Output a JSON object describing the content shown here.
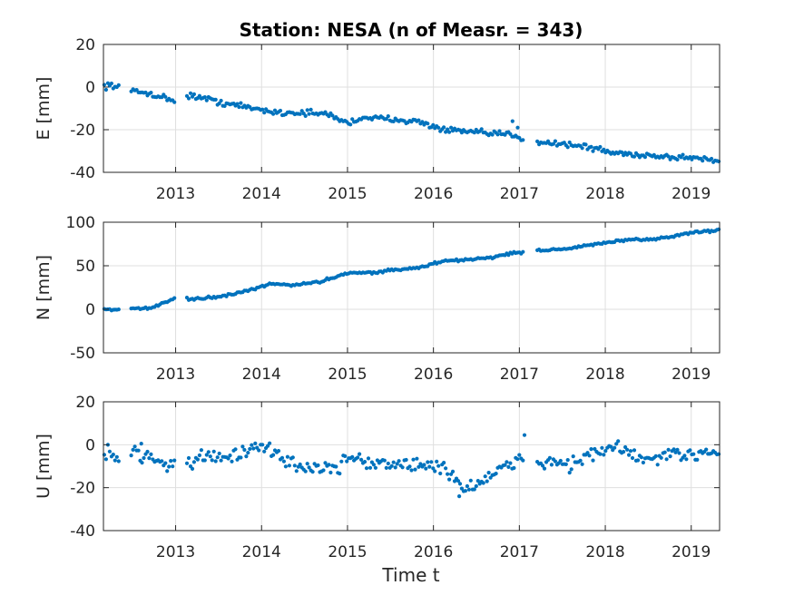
{
  "title": "Station: NESA (n of Measr. = 343)",
  "xlabel": "Time t",
  "colors": {
    "marker": "#0072BD",
    "grid": "#dfdfdf",
    "axis": "#262626"
  },
  "chart_data": [
    {
      "type": "scatter",
      "id": "E",
      "ylabel": "E [mm]",
      "xlim": [
        2012.16,
        2019.33
      ],
      "ylim": [
        -40,
        20
      ],
      "xticks": [
        2013,
        2014,
        2015,
        2016,
        2017,
        2018,
        2019
      ],
      "yticks": [
        20,
        0,
        -20,
        -40
      ],
      "grid": true,
      "profile": [
        [
          2012.16,
          0.5
        ],
        [
          2012.25,
          1
        ],
        [
          2012.5,
          -2
        ],
        [
          2012.7,
          -3
        ],
        [
          2012.95,
          -6
        ],
        [
          2013.2,
          -4
        ],
        [
          2013.5,
          -7
        ],
        [
          2013.9,
          -10
        ],
        [
          2014.2,
          -12
        ],
        [
          2014.5,
          -12
        ],
        [
          2014.8,
          -13
        ],
        [
          2015.0,
          -17
        ],
        [
          2015.2,
          -14
        ],
        [
          2015.4,
          -15
        ],
        [
          2015.6,
          -15
        ],
        [
          2015.9,
          -17
        ],
        [
          2016.1,
          -20
        ],
        [
          2016.4,
          -21
        ],
        [
          2016.7,
          -22
        ],
        [
          2016.9,
          -22
        ],
        [
          2017.1,
          -25
        ],
        [
          2017.3,
          -26
        ],
        [
          2017.6,
          -27
        ],
        [
          2017.9,
          -29
        ],
        [
          2018.1,
          -31
        ],
        [
          2018.5,
          -32
        ],
        [
          2018.8,
          -33
        ],
        [
          2019.0,
          -33
        ],
        [
          2019.33,
          -34.5
        ]
      ],
      "noise": 1.2,
      "outliers": [
        [
          2016.92,
          -16
        ],
        [
          2016.98,
          -19
        ]
      ],
      "gaps": [
        [
          2012.34,
          2012.47
        ],
        [
          2012.99,
          2013.13
        ],
        [
          2017.05,
          2017.2
        ]
      ]
    },
    {
      "type": "scatter",
      "id": "N",
      "ylabel": "N [mm]",
      "xlim": [
        2012.16,
        2019.33
      ],
      "ylim": [
        -50,
        100
      ],
      "xticks": [
        2013,
        2014,
        2015,
        2016,
        2017,
        2018,
        2019
      ],
      "yticks": [
        100,
        50,
        0,
        -50
      ],
      "grid": true,
      "profile": [
        [
          2012.16,
          0
        ],
        [
          2012.3,
          0
        ],
        [
          2012.5,
          0
        ],
        [
          2012.75,
          2
        ],
        [
          2012.95,
          11
        ],
        [
          2013.2,
          12
        ],
        [
          2013.5,
          14
        ],
        [
          2013.8,
          20
        ],
        [
          2014.1,
          29
        ],
        [
          2014.4,
          28
        ],
        [
          2014.7,
          32
        ],
        [
          2015.0,
          42
        ],
        [
          2015.3,
          42
        ],
        [
          2015.5,
          45
        ],
        [
          2015.8,
          47
        ],
        [
          2016.1,
          55
        ],
        [
          2016.4,
          57
        ],
        [
          2016.7,
          60
        ],
        [
          2016.95,
          65
        ],
        [
          2017.3,
          68
        ],
        [
          2017.6,
          70
        ],
        [
          2017.9,
          75
        ],
        [
          2018.2,
          79
        ],
        [
          2018.5,
          80
        ],
        [
          2018.8,
          84
        ],
        [
          2019.0,
          88
        ],
        [
          2019.33,
          91
        ]
      ],
      "noise": 1.2,
      "outliers": [],
      "gaps": [
        [
          2012.34,
          2012.47
        ],
        [
          2012.99,
          2013.13
        ],
        [
          2017.05,
          2017.2
        ]
      ]
    },
    {
      "type": "scatter",
      "id": "U",
      "ylabel": "U [mm]",
      "xlim": [
        2012.16,
        2019.33
      ],
      "ylim": [
        -40,
        20
      ],
      "xticks": [
        2013,
        2014,
        2015,
        2016,
        2017,
        2018,
        2019
      ],
      "yticks": [
        20,
        0,
        -20,
        -40
      ],
      "grid": true,
      "profile": [
        [
          2012.16,
          -3
        ],
        [
          2012.3,
          -6
        ],
        [
          2012.55,
          -3
        ],
        [
          2012.75,
          -7
        ],
        [
          2012.95,
          -9
        ],
        [
          2013.2,
          -8
        ],
        [
          2013.4,
          -5
        ],
        [
          2013.7,
          -5
        ],
        [
          2013.95,
          -2
        ],
        [
          2014.1,
          -2
        ],
        [
          2014.3,
          -8
        ],
        [
          2014.6,
          -11
        ],
        [
          2014.9,
          -11
        ],
        [
          2015.05,
          -5
        ],
        [
          2015.3,
          -9
        ],
        [
          2015.6,
          -9
        ],
        [
          2015.9,
          -10
        ],
        [
          2016.1,
          -10
        ],
        [
          2016.2,
          -13
        ],
        [
          2016.35,
          -21
        ],
        [
          2016.6,
          -16
        ],
        [
          2016.9,
          -10
        ],
        [
          2017.0,
          -6
        ],
        [
          2017.3,
          -8
        ],
        [
          2017.6,
          -9
        ],
        [
          2017.8,
          -5
        ],
        [
          2017.95,
          -4
        ],
        [
          2018.1,
          -1
        ],
        [
          2018.3,
          -4
        ],
        [
          2018.5,
          -8
        ],
        [
          2018.7,
          -5
        ],
        [
          2018.9,
          -6
        ],
        [
          2019.1,
          -3
        ],
        [
          2019.33,
          -3
        ]
      ],
      "noise": 3.0,
      "outliers": [
        [
          2017.06,
          4.5
        ],
        [
          2012.6,
          0.5
        ],
        [
          2016.3,
          -24
        ]
      ],
      "gaps": [
        [
          2012.34,
          2012.47
        ],
        [
          2012.99,
          2013.13
        ],
        [
          2017.05,
          2017.2
        ]
      ]
    }
  ]
}
